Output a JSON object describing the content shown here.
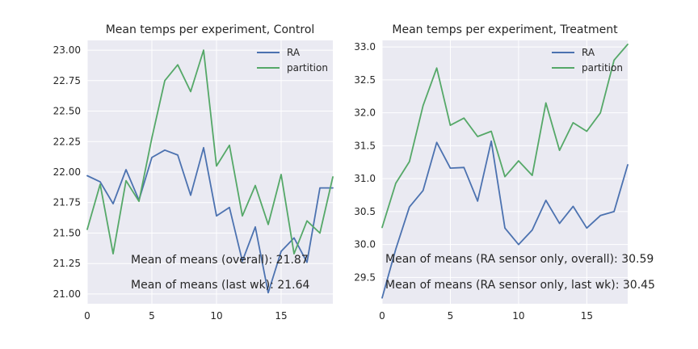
{
  "chart_data": [
    {
      "type": "line",
      "title": "Mean temps per experiment, Control",
      "xlabel": "",
      "ylabel": "",
      "xlim": [
        0,
        19
      ],
      "ylim": [
        20.92,
        23.08
      ],
      "xticks": [
        0,
        5,
        10,
        15
      ],
      "yticks": [
        21.0,
        21.25,
        21.5,
        21.75,
        22.0,
        22.25,
        22.5,
        22.75,
        23.0
      ],
      "ytick_decimals": 2,
      "grid": true,
      "legend_position": "top-right",
      "x": [
        0,
        1,
        2,
        3,
        4,
        5,
        6,
        7,
        8,
        9,
        10,
        11,
        12,
        13,
        14,
        15,
        16,
        17,
        18,
        19
      ],
      "series": [
        {
          "name": "RA",
          "color": "#4c72b0",
          "values": [
            21.97,
            21.92,
            21.74,
            22.02,
            21.77,
            22.12,
            22.18,
            22.14,
            21.81,
            22.2,
            21.64,
            21.71,
            21.27,
            21.55,
            21.01,
            21.35,
            21.46,
            21.26,
            21.87,
            21.87
          ]
        },
        {
          "name": "partition",
          "color": "#55a868",
          "values": [
            21.53,
            21.9,
            21.33,
            21.93,
            21.76,
            22.28,
            22.75,
            22.88,
            22.66,
            23.0,
            22.05,
            22.22,
            21.64,
            21.89,
            21.57,
            21.98,
            21.33,
            21.6,
            21.5,
            21.96
          ]
        }
      ],
      "annotations": [
        "Mean of means (overall): 21.87",
        "Mean of means (last wk): 21.64"
      ]
    },
    {
      "type": "line",
      "title": "Mean temps per experiment, Treatment",
      "xlabel": "",
      "ylabel": "",
      "xlim": [
        0,
        18
      ],
      "ylim": [
        29.1,
        33.1
      ],
      "xticks": [
        0,
        5,
        10,
        15
      ],
      "yticks": [
        29.5,
        30.0,
        30.5,
        31.0,
        31.5,
        32.0,
        32.5,
        33.0
      ],
      "ytick_decimals": 1,
      "grid": true,
      "legend_position": "top-right",
      "x": [
        0,
        1,
        2,
        3,
        4,
        5,
        6,
        7,
        8,
        9,
        10,
        11,
        12,
        13,
        14,
        15,
        16,
        17,
        18
      ],
      "series": [
        {
          "name": "RA",
          "color": "#4c72b0",
          "values": [
            29.19,
            29.93,
            30.57,
            30.82,
            31.55,
            31.16,
            31.17,
            30.66,
            31.57,
            30.25,
            30.0,
            30.22,
            30.67,
            30.32,
            30.58,
            30.25,
            30.44,
            30.5,
            31.21
          ]
        },
        {
          "name": "partition",
          "color": "#55a868",
          "values": [
            30.26,
            30.93,
            31.26,
            32.11,
            32.68,
            31.81,
            31.92,
            31.64,
            31.72,
            31.03,
            31.27,
            31.05,
            32.15,
            31.43,
            31.85,
            31.72,
            32.0,
            32.8,
            33.04
          ]
        }
      ],
      "annotations": [
        "Mean of means (RA sensor only, overall): 30.59",
        "Mean of means (RA sensor only, last wk): 30.45"
      ]
    }
  ]
}
